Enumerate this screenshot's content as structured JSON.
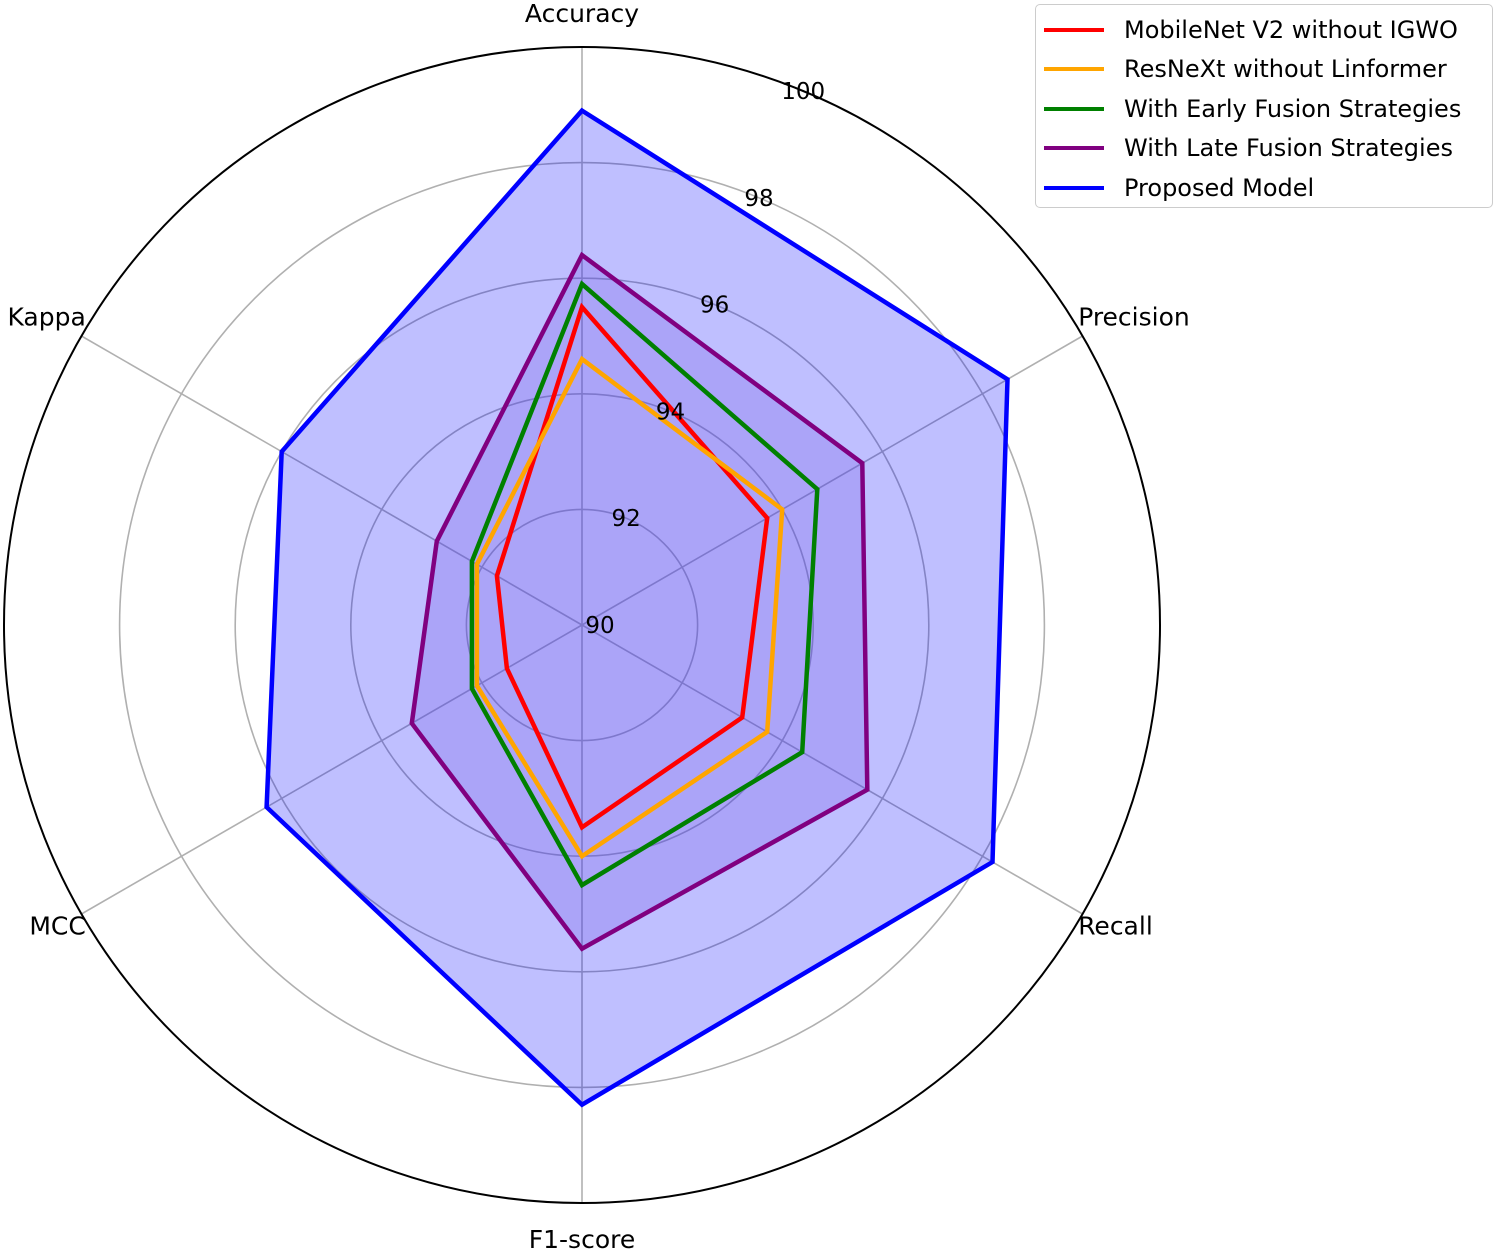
{
  "chart_data": {
    "type": "radar",
    "axes": [
      "Accuracy",
      "Precision",
      "Recall",
      "F1-score",
      "MCC",
      "Kappa"
    ],
    "rlim": [
      90,
      100
    ],
    "r_ticks": [
      90,
      92,
      94,
      96,
      98,
      100
    ],
    "r_tick_labels": [
      "90",
      "92",
      "94",
      "96",
      "98",
      "100"
    ],
    "grid": true,
    "legend_position": "top-right",
    "series": [
      {
        "name": "MobileNet V2 without IGWO",
        "color": "#ff0000",
        "fill": false,
        "values": [
          95.5,
          93.7,
          93.2,
          93.5,
          91.5,
          91.7
        ]
      },
      {
        "name": "ResNeXt without Linformer",
        "color": "#ffa500",
        "fill": false,
        "values": [
          94.6,
          94.0,
          93.7,
          94.0,
          92.1,
          92.1
        ]
      },
      {
        "name": "With Early Fusion Strategies",
        "color": "#008000",
        "fill": false,
        "values": [
          95.9,
          94.7,
          94.4,
          94.5,
          92.2,
          92.2
        ]
      },
      {
        "name": "With Late Fusion Strategies",
        "color": "#800080",
        "fill": true,
        "fill_color": "#9370db",
        "values": [
          96.4,
          95.6,
          95.7,
          95.6,
          93.4,
          92.9
        ]
      },
      {
        "name": "Proposed Model",
        "color": "#0000ff",
        "fill": true,
        "fill_color": "#0000ff",
        "values": [
          98.9,
          98.5,
          98.2,
          98.3,
          96.3,
          96.0
        ]
      }
    ]
  }
}
